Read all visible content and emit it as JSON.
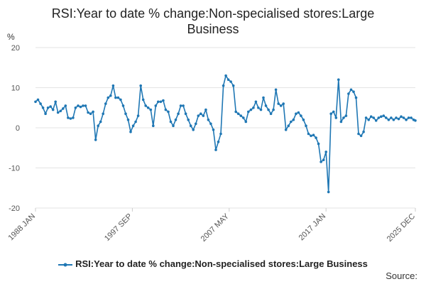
{
  "chart_data": {
    "type": "line",
    "title": "RSI:Year to date % change:Non-specialised stores:Large Business",
    "ylabel": "%",
    "xlabel": "",
    "ylim": [
      -20,
      20
    ],
    "yticks": [
      20,
      10,
      0,
      -10,
      -20
    ],
    "x_range": [
      "1988-01",
      "2025-12"
    ],
    "xticks": [
      {
        "label": "1988 JAN",
        "date": "1988-01"
      },
      {
        "label": "1997 SEP",
        "date": "1997-09"
      },
      {
        "label": "2007 MAY",
        "date": "2007-05"
      },
      {
        "label": "2017 JAN",
        "date": "2017-01"
      },
      {
        "label": "2025 DEC",
        "date": "2025-12"
      }
    ],
    "grid": true,
    "legend_position": "bottom",
    "series": [
      {
        "name": "RSI:Year to date % change:Non-specialised stores:Large Business",
        "color": "#1f77b4",
        "points": [
          [
            "1988-01",
            6.5
          ],
          [
            "1988-04",
            7.0
          ],
          [
            "1988-07",
            6.0
          ],
          [
            "1988-10",
            5.0
          ],
          [
            "1989-01",
            3.5
          ],
          [
            "1989-04",
            5.0
          ],
          [
            "1989-07",
            5.3
          ],
          [
            "1989-10",
            4.5
          ],
          [
            "1990-01",
            6.5
          ],
          [
            "1990-04",
            3.8
          ],
          [
            "1990-07",
            4.2
          ],
          [
            "1990-10",
            4.8
          ],
          [
            "1991-01",
            5.5
          ],
          [
            "1991-04",
            2.5
          ],
          [
            "1991-07",
            2.3
          ],
          [
            "1991-10",
            2.5
          ],
          [
            "1992-01",
            5.0
          ],
          [
            "1992-04",
            5.5
          ],
          [
            "1992-07",
            5.2
          ],
          [
            "1992-10",
            5.5
          ],
          [
            "1993-01",
            5.5
          ],
          [
            "1993-04",
            3.8
          ],
          [
            "1993-07",
            3.5
          ],
          [
            "1993-10",
            4.0
          ],
          [
            "1994-01",
            -3.0
          ],
          [
            "1994-04",
            0.5
          ],
          [
            "1994-07",
            1.5
          ],
          [
            "1994-10",
            3.5
          ],
          [
            "1995-01",
            6.0
          ],
          [
            "1995-04",
            7.5
          ],
          [
            "1995-07",
            8.0
          ],
          [
            "1995-10",
            10.5
          ],
          [
            "1996-01",
            7.5
          ],
          [
            "1996-04",
            7.5
          ],
          [
            "1996-07",
            7.0
          ],
          [
            "1996-10",
            5.5
          ],
          [
            "1997-01",
            3.5
          ],
          [
            "1997-04",
            2.0
          ],
          [
            "1997-07",
            -1.0
          ],
          [
            "1997-10",
            0.5
          ],
          [
            "1998-01",
            1.5
          ],
          [
            "1998-04",
            3.0
          ],
          [
            "1998-07",
            10.5
          ],
          [
            "1998-10",
            7.0
          ],
          [
            "1999-01",
            5.5
          ],
          [
            "1999-04",
            5.0
          ],
          [
            "1999-07",
            4.5
          ],
          [
            "1999-10",
            0.5
          ],
          [
            "2000-01",
            5.5
          ],
          [
            "2000-04",
            6.5
          ],
          [
            "2000-07",
            6.5
          ],
          [
            "2000-10",
            6.8
          ],
          [
            "2001-01",
            4.5
          ],
          [
            "2001-04",
            4.0
          ],
          [
            "2001-07",
            1.5
          ],
          [
            "2001-10",
            0.5
          ],
          [
            "2002-01",
            2.0
          ],
          [
            "2002-04",
            3.5
          ],
          [
            "2002-07",
            5.5
          ],
          [
            "2002-10",
            5.5
          ],
          [
            "2003-01",
            3.5
          ],
          [
            "2003-04",
            2.0
          ],
          [
            "2003-07",
            0.5
          ],
          [
            "2003-10",
            -0.5
          ],
          [
            "2004-01",
            1.0
          ],
          [
            "2004-04",
            3.0
          ],
          [
            "2004-07",
            3.5
          ],
          [
            "2004-10",
            3.0
          ],
          [
            "2005-01",
            4.5
          ],
          [
            "2005-04",
            2.0
          ],
          [
            "2005-07",
            1.0
          ],
          [
            "2005-10",
            -0.5
          ],
          [
            "2006-01",
            -5.5
          ],
          [
            "2006-04",
            -3.5
          ],
          [
            "2006-07",
            -1.5
          ],
          [
            "2006-10",
            10.5
          ],
          [
            "2007-01",
            13.0
          ],
          [
            "2007-04",
            12.0
          ],
          [
            "2007-07",
            11.5
          ],
          [
            "2007-10",
            10.5
          ],
          [
            "2008-01",
            4.0
          ],
          [
            "2008-04",
            3.5
          ],
          [
            "2008-07",
            3.0
          ],
          [
            "2008-10",
            2.5
          ],
          [
            "2009-01",
            1.5
          ],
          [
            "2009-04",
            4.0
          ],
          [
            "2009-07",
            4.5
          ],
          [
            "2009-10",
            5.0
          ],
          [
            "2010-01",
            6.5
          ],
          [
            "2010-04",
            5.0
          ],
          [
            "2010-07",
            4.5
          ],
          [
            "2010-10",
            7.5
          ],
          [
            "2011-01",
            5.5
          ],
          [
            "2011-04",
            4.5
          ],
          [
            "2011-07",
            3.5
          ],
          [
            "2011-10",
            4.5
          ],
          [
            "2012-01",
            9.5
          ],
          [
            "2012-04",
            6.0
          ],
          [
            "2012-07",
            5.5
          ],
          [
            "2012-10",
            6.0
          ],
          [
            "2013-01",
            -0.5
          ],
          [
            "2013-04",
            0.5
          ],
          [
            "2013-07",
            1.5
          ],
          [
            "2013-10",
            2.0
          ],
          [
            "2014-01",
            3.5
          ],
          [
            "2014-04",
            3.8
          ],
          [
            "2014-07",
            3.0
          ],
          [
            "2014-10",
            2.0
          ],
          [
            "2015-01",
            0.5
          ],
          [
            "2015-04",
            -1.5
          ],
          [
            "2015-07",
            -2.0
          ],
          [
            "2015-10",
            -1.8
          ],
          [
            "2016-01",
            -2.5
          ],
          [
            "2016-04",
            -4.0
          ],
          [
            "2016-07",
            -8.5
          ],
          [
            "2016-10",
            -8.0
          ],
          [
            "2017-01",
            -6.0
          ],
          [
            "2017-04",
            -16.0
          ],
          [
            "2017-07",
            3.5
          ],
          [
            "2017-10",
            4.0
          ],
          [
            "2018-01",
            2.5
          ],
          [
            "2018-04",
            12.0
          ],
          [
            "2018-07",
            1.5
          ],
          [
            "2018-10",
            2.5
          ],
          [
            "2019-01",
            3.0
          ],
          [
            "2019-04",
            8.5
          ],
          [
            "2019-07",
            9.5
          ],
          [
            "2019-10",
            9.0
          ],
          [
            "2020-01",
            7.5
          ],
          [
            "2020-04",
            -1.5
          ],
          [
            "2020-07",
            -2.0
          ],
          [
            "2020-10",
            -1.0
          ],
          [
            "2021-01",
            2.5
          ],
          [
            "2021-04",
            2.0
          ],
          [
            "2021-07",
            2.8
          ],
          [
            "2021-10",
            2.5
          ],
          [
            "2022-01",
            1.8
          ],
          [
            "2022-04",
            2.5
          ],
          [
            "2022-07",
            2.8
          ],
          [
            "2022-10",
            3.0
          ],
          [
            "2023-01",
            2.5
          ],
          [
            "2023-04",
            2.0
          ],
          [
            "2023-07",
            2.5
          ],
          [
            "2023-10",
            2.0
          ],
          [
            "2024-01",
            2.5
          ],
          [
            "2024-04",
            2.2
          ],
          [
            "2024-07",
            2.8
          ],
          [
            "2024-10",
            2.5
          ],
          [
            "2025-01",
            2.0
          ],
          [
            "2025-04",
            2.5
          ],
          [
            "2025-07",
            2.5
          ],
          [
            "2025-10",
            2.0
          ],
          [
            "2025-12",
            1.8
          ]
        ]
      }
    ]
  },
  "legend": {
    "label": "RSI:Year to date % change:Non-specialised stores:Large Business"
  },
  "footer": {
    "source_label": "Source:"
  }
}
